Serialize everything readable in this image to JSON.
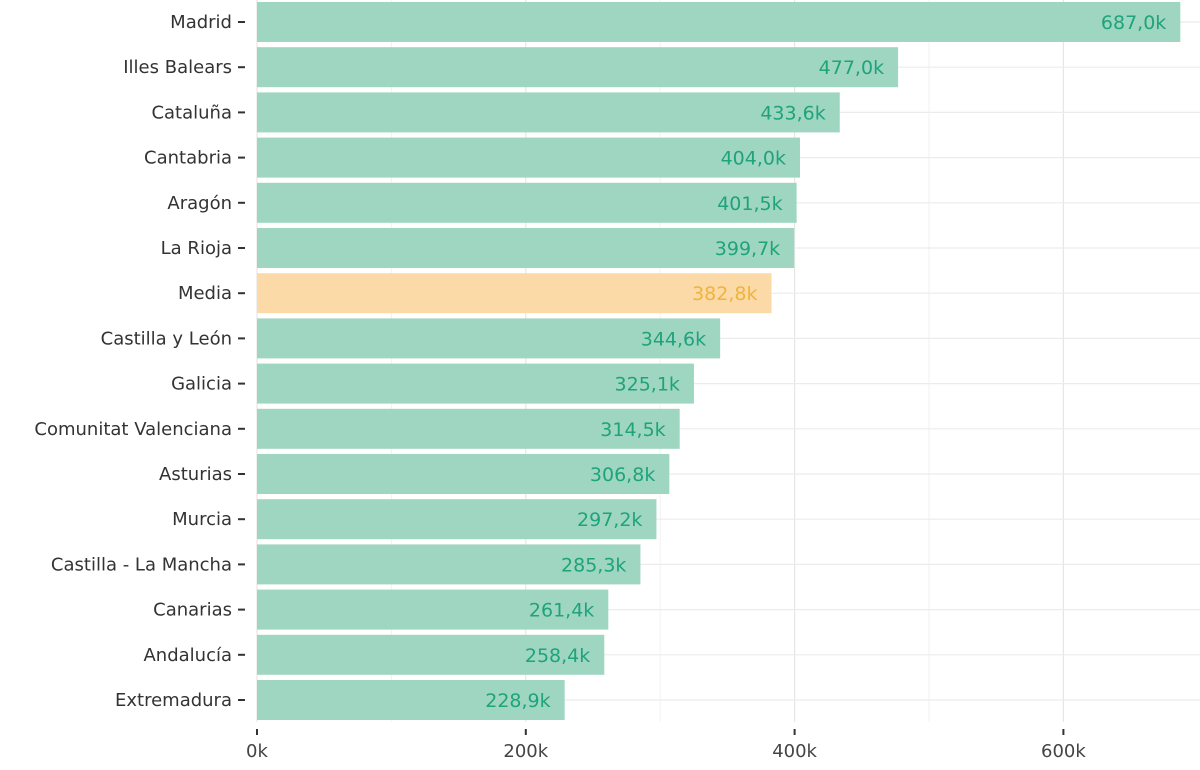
{
  "chart_data": {
    "type": "bar",
    "orientation": "horizontal",
    "title": "",
    "xlabel": "",
    "ylabel": "",
    "xlim": [
      0,
      690
    ],
    "x_ticks": [
      "0k",
      "200k",
      "400k",
      "600k"
    ],
    "x_tick_values": [
      0,
      200,
      400,
      600
    ],
    "grid": true,
    "categories": [
      "Madrid",
      "Illes Balears",
      "Cataluña",
      "Cantabria",
      "Aragón",
      "La Rioja",
      "Media",
      "Castilla y León",
      "Galicia",
      "Comunitat Valenciana",
      "Asturias",
      "Murcia",
      "Castilla - La Mancha",
      "Canarias",
      "Andalucía",
      "Extremadura"
    ],
    "values": [
      687.0,
      477.0,
      433.6,
      404.0,
      401.5,
      399.7,
      382.8,
      344.6,
      325.1,
      314.5,
      306.8,
      297.2,
      285.3,
      261.4,
      258.4,
      228.9
    ],
    "labels": [
      "687,0k",
      "477,0k",
      "433,6k",
      "404,0k",
      "401,5k",
      "399,7k",
      "382,8k",
      "344,6k",
      "325,1k",
      "314,5k",
      "306,8k",
      "297,2k",
      "285,3k",
      "261,4k",
      "258,4k",
      "228,9k"
    ],
    "highlight": "Media",
    "colors": {
      "bar": "#9fd6c2",
      "label": "#1fa37b",
      "highlight_bar": "#fbdaa8",
      "highlight_label": "#efb43c"
    }
  }
}
